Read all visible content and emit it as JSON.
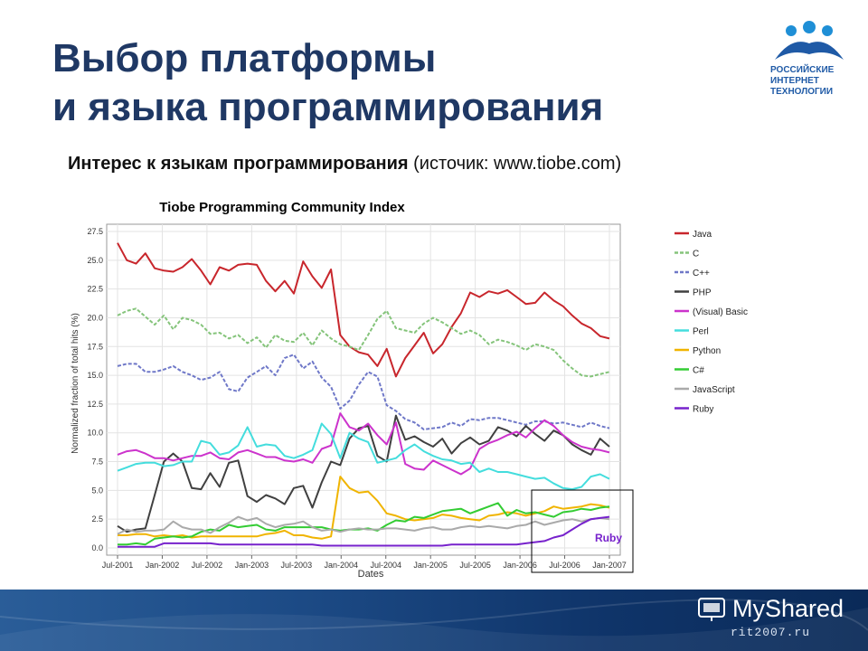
{
  "slide": {
    "title_line1": "Выбор платформы",
    "title_line2": "и языка программирования",
    "subtitle_bold": "Интерес к языкам программирования",
    "subtitle_rest": " (источик: www.tiobe.com)",
    "logo_line1": "РОССИЙСКИЕ",
    "logo_line2": "ИНТЕРНЕТ",
    "logo_line3": "ТЕХНОЛОГИИ",
    "footer_brand": "MyShared",
    "footer_site": "rit2007.ru"
  },
  "colors": {
    "title": "#1f3864",
    "logo": "#1f5aa6",
    "footer": "#1c4a85"
  },
  "chart_data": {
    "type": "line",
    "title": "Tiobe Programming Community Index",
    "xlabel": "Dates",
    "ylabel": "Normalized fraction of total hits (%)",
    "ylim": [
      0,
      27.5
    ],
    "yticks": [
      "0.0",
      "2.5",
      "5.0",
      "7.5",
      "10.0",
      "12.5",
      "15.0",
      "17.5",
      "20.0",
      "22.5",
      "25.0",
      "27.5"
    ],
    "xticks": [
      "Jul-2001",
      "Jan-2002",
      "Jul-2002",
      "Jan-2003",
      "Jul-2003",
      "Jan-2004",
      "Jul-2004",
      "Jan-2005",
      "Jul-2005",
      "Jan-2006",
      "Jul-2006",
      "Jan-2007"
    ],
    "x_start": "Jul-2001",
    "x_end": "Jun-2007",
    "grid": true,
    "legend_position": "right",
    "annotation": "Ruby",
    "series": [
      {
        "name": "Java",
        "color": "#c8262c",
        "values": [
          26.5,
          25.0,
          24.7,
          25.6,
          24.3,
          24.1,
          24.0,
          24.4,
          25.1,
          24.1,
          22.9,
          24.4,
          24.1,
          24.6,
          24.7,
          24.6,
          23.2,
          22.3,
          23.2,
          22.1,
          24.9,
          23.6,
          22.6,
          24.2,
          18.5,
          17.5,
          17.0,
          16.8,
          15.8,
          17.3,
          14.9,
          16.5,
          17.6,
          18.7,
          16.9,
          17.7,
          19.2,
          20.4,
          22.2,
          21.8,
          22.3,
          22.1,
          22.4,
          21.8,
          21.2,
          21.3,
          22.2,
          21.5,
          21.0,
          20.2,
          19.5,
          19.1,
          18.4,
          18.2
        ]
      },
      {
        "name": "C",
        "color": "#85c47b",
        "dash": "4,2",
        "values": [
          20.2,
          20.6,
          20.8,
          20.1,
          19.4,
          20.2,
          19.0,
          20.0,
          19.8,
          19.4,
          18.6,
          18.7,
          18.2,
          18.5,
          17.8,
          18.3,
          17.4,
          18.5,
          18.0,
          17.9,
          18.7,
          17.6,
          18.9,
          18.2,
          17.7,
          17.5,
          17.2,
          18.5,
          19.9,
          20.6,
          19.1,
          18.9,
          18.7,
          19.5,
          20.0,
          19.6,
          19.1,
          18.6,
          18.9,
          18.5,
          17.7,
          18.1,
          17.9,
          17.6,
          17.2,
          17.7,
          17.5,
          17.2,
          16.3,
          15.6,
          15.0,
          14.9,
          15.1,
          15.3
        ]
      },
      {
        "name": "C++",
        "color": "#6f78c8",
        "dash": "4,2",
        "values": [
          15.8,
          16.0,
          16.0,
          15.3,
          15.3,
          15.5,
          15.8,
          15.3,
          15.0,
          14.6,
          14.8,
          15.3,
          13.8,
          13.6,
          14.8,
          15.3,
          15.8,
          15.0,
          16.5,
          16.8,
          15.6,
          16.2,
          14.8,
          14.0,
          12.1,
          12.8,
          14.2,
          15.3,
          14.9,
          12.4,
          11.9,
          11.2,
          10.9,
          10.3,
          10.4,
          10.5,
          10.9,
          10.6,
          11.2,
          11.1,
          11.3,
          11.3,
          11.1,
          10.9,
          10.7,
          11.0,
          11.0,
          10.8,
          10.9,
          10.7,
          10.5,
          10.9,
          10.6,
          10.4
        ]
      },
      {
        "name": "PHP",
        "color": "#404040",
        "values": [
          1.9,
          1.4,
          1.6,
          1.7,
          4.6,
          7.5,
          8.2,
          7.5,
          5.2,
          5.1,
          6.5,
          5.3,
          7.4,
          7.6,
          4.5,
          4.0,
          4.6,
          4.3,
          3.8,
          5.2,
          5.4,
          3.5,
          5.7,
          7.5,
          7.2,
          9.5,
          10.4,
          10.6,
          8.0,
          7.5,
          11.5,
          9.4,
          9.7,
          9.2,
          8.8,
          9.5,
          8.2,
          9.1,
          9.6,
          9.0,
          9.3,
          10.5,
          10.2,
          9.7,
          10.6,
          9.9,
          9.3,
          10.2,
          9.8,
          9.0,
          8.5,
          8.1,
          9.5,
          8.8
        ]
      },
      {
        "name": "(Visual) Basic",
        "color": "#cc33cc",
        "values": [
          8.1,
          8.4,
          8.5,
          8.2,
          7.8,
          7.8,
          7.6,
          7.8,
          8.0,
          8.0,
          8.3,
          7.8,
          7.7,
          8.3,
          8.5,
          8.2,
          7.9,
          7.9,
          7.6,
          7.5,
          7.7,
          7.4,
          8.6,
          8.9,
          11.7,
          10.5,
          10.2,
          10.8,
          9.8,
          9.0,
          10.9,
          7.3,
          6.9,
          6.8,
          7.6,
          7.2,
          6.8,
          6.4,
          6.9,
          8.6,
          9.1,
          9.4,
          9.8,
          10.1,
          9.6,
          10.4,
          11.1,
          10.6,
          9.8,
          9.2,
          8.8,
          8.6,
          8.5,
          8.3
        ]
      },
      {
        "name": "Perl",
        "color": "#44dddd",
        "values": [
          6.7,
          7.0,
          7.3,
          7.4,
          7.4,
          7.1,
          7.2,
          7.5,
          7.5,
          9.3,
          9.1,
          8.1,
          8.3,
          8.9,
          10.5,
          8.8,
          9.0,
          8.9,
          8.0,
          7.8,
          8.1,
          8.5,
          10.8,
          9.9,
          7.8,
          10.0,
          9.5,
          9.2,
          7.4,
          7.6,
          7.8,
          8.5,
          9.0,
          8.4,
          8.0,
          7.7,
          7.6,
          7.3,
          7.4,
          6.6,
          6.9,
          6.6,
          6.6,
          6.4,
          6.2,
          6.0,
          6.1,
          5.6,
          5.2,
          5.1,
          5.3,
          6.2,
          6.4,
          6.0
        ]
      },
      {
        "name": "Python",
        "color": "#f0b400",
        "values": [
          1.1,
          1.1,
          1.2,
          1.2,
          1.0,
          1.1,
          1.0,
          1.1,
          0.9,
          1.0,
          1.0,
          1.0,
          1.0,
          1.0,
          1.0,
          1.0,
          1.2,
          1.3,
          1.5,
          1.1,
          1.1,
          0.9,
          0.8,
          1.0,
          6.2,
          5.2,
          4.8,
          4.9,
          4.1,
          3.0,
          2.8,
          2.5,
          2.4,
          2.5,
          2.6,
          2.9,
          2.8,
          2.6,
          2.5,
          2.4,
          2.8,
          2.9,
          3.1,
          3.0,
          2.8,
          3.0,
          3.2,
          3.6,
          3.4,
          3.5,
          3.6,
          3.8,
          3.7,
          3.5
        ]
      },
      {
        "name": "C#",
        "color": "#33cc33",
        "values": [
          0.3,
          0.3,
          0.4,
          0.3,
          0.8,
          0.9,
          1.0,
          0.9,
          1.0,
          1.4,
          1.6,
          1.5,
          2.0,
          1.8,
          1.9,
          2.0,
          1.6,
          1.5,
          1.8,
          1.8,
          1.8,
          1.8,
          1.8,
          1.6,
          1.5,
          1.6,
          1.6,
          1.7,
          1.5,
          2.0,
          2.4,
          2.3,
          2.7,
          2.6,
          2.9,
          3.2,
          3.3,
          3.4,
          3.0,
          3.3,
          3.6,
          3.9,
          2.8,
          3.3,
          3.0,
          3.1,
          2.9,
          2.7,
          3.1,
          3.2,
          3.4,
          3.3,
          3.5,
          3.6
        ]
      },
      {
        "name": "JavaScript",
        "color": "#aaaaaa",
        "values": [
          1.2,
          1.6,
          1.4,
          1.5,
          1.5,
          1.6,
          2.3,
          1.8,
          1.6,
          1.6,
          1.3,
          1.8,
          2.2,
          2.7,
          2.4,
          2.6,
          2.1,
          1.8,
          2.0,
          2.1,
          2.3,
          1.8,
          1.5,
          1.6,
          1.4,
          1.6,
          1.7,
          1.6,
          1.6,
          1.7,
          1.7,
          1.6,
          1.5,
          1.7,
          1.8,
          1.6,
          1.6,
          1.8,
          1.9,
          1.8,
          1.9,
          1.8,
          1.7,
          1.9,
          2.0,
          2.3,
          2.0,
          2.2,
          2.4,
          2.5,
          2.3,
          2.5,
          2.6,
          2.5
        ]
      },
      {
        "name": "Ruby",
        "color": "#7722cc",
        "values": [
          0.1,
          0.1,
          0.1,
          0.1,
          0.1,
          0.4,
          0.4,
          0.4,
          0.4,
          0.4,
          0.4,
          0.3,
          0.3,
          0.3,
          0.3,
          0.3,
          0.3,
          0.3,
          0.3,
          0.3,
          0.3,
          0.3,
          0.2,
          0.2,
          0.2,
          0.2,
          0.2,
          0.2,
          0.2,
          0.2,
          0.2,
          0.2,
          0.2,
          0.2,
          0.2,
          0.2,
          0.3,
          0.3,
          0.3,
          0.3,
          0.3,
          0.3,
          0.3,
          0.3,
          0.4,
          0.5,
          0.6,
          0.9,
          1.1,
          1.6,
          2.1,
          2.5,
          2.6,
          2.7
        ]
      }
    ]
  }
}
